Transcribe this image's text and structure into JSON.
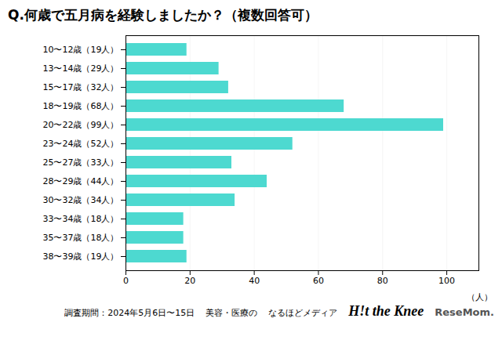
{
  "chart_data": {
    "type": "bar",
    "orientation": "horizontal",
    "title": "Q.何歳で五月病を経験しましたか？（複数回答可）",
    "categories": [
      "38〜39歳（19人）",
      "35〜37歳（18人）",
      "33〜34歳（18人）",
      "30〜32歳（34人）",
      "28〜29歳（44人）",
      "25〜27歳（33人）",
      "23〜24歳（52人）",
      "20〜22歳（99人）",
      "18〜19歳（68人）",
      "15〜17歳（32人）",
      "13〜14歳（29人）",
      "10〜12歳（19人）"
    ],
    "values": [
      19,
      18,
      18,
      34,
      44,
      33,
      52,
      99,
      68,
      32,
      29,
      19
    ],
    "color": "#4DD9D0",
    "xlabel": "（人）",
    "xlim": [
      0,
      110
    ],
    "xticks": [
      0,
      20,
      40,
      60,
      80,
      100
    ],
    "grid": true,
    "annotations": [
      "調査期間：2024年5月6日〜15日",
      "美容・医療の",
      "なるほどメディア",
      "H!t the Knee",
      "ReseMom."
    ]
  }
}
